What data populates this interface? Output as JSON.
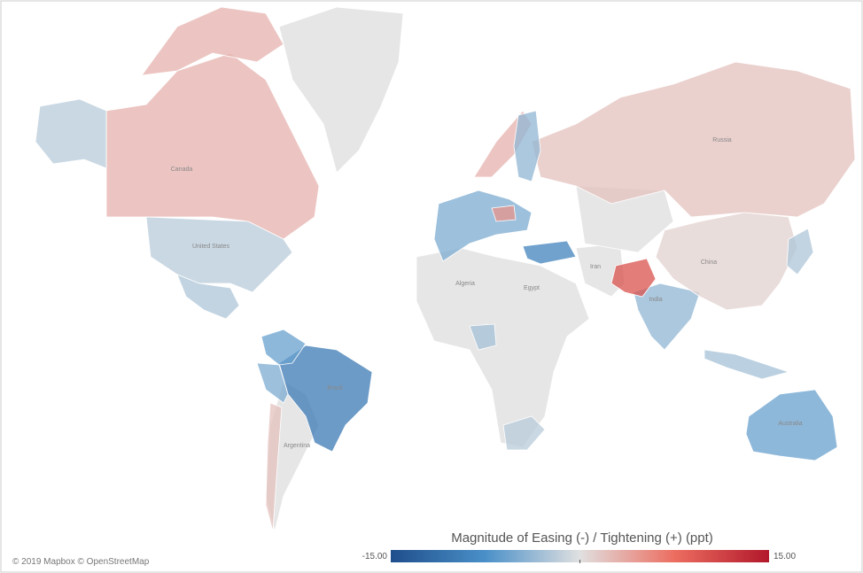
{
  "legend": {
    "title": "Magnitude of Easing (-) / Tightening (+) (ppt)",
    "min": {
      "value": -15,
      "label": "-15.00"
    },
    "max": {
      "value": 15,
      "label": "15.00"
    }
  },
  "attribution": "© 2019 Mapbox © OpenStreetMap",
  "regions": [
    {
      "label": "Canada",
      "value": 3
    },
    {
      "label": "United States",
      "value": -2
    },
    {
      "label": "Brazil",
      "value": -10
    },
    {
      "label": "India",
      "value": -4
    },
    {
      "label": "China",
      "value": 1
    },
    {
      "label": "Russia",
      "value": 2
    },
    {
      "label": "Australia",
      "value": -6
    },
    {
      "value": -2.5
    },
    {
      "value": -6
    },
    {
      "value": -5
    },
    {
      "value": 2
    },
    {
      "value": 10
    },
    {
      "value": -9
    },
    {
      "value": -2
    },
    {
      "value": -3
    },
    {
      "value": -3
    },
    {
      "value": -2.5
    },
    {
      "value": -5
    },
    {
      "value": 3
    },
    {
      "value": 5
    },
    {
      "value": -4
    }
  ],
  "place_labels": [
    "Argentina",
    "Algeria",
    "Egypt",
    "Iran"
  ]
}
